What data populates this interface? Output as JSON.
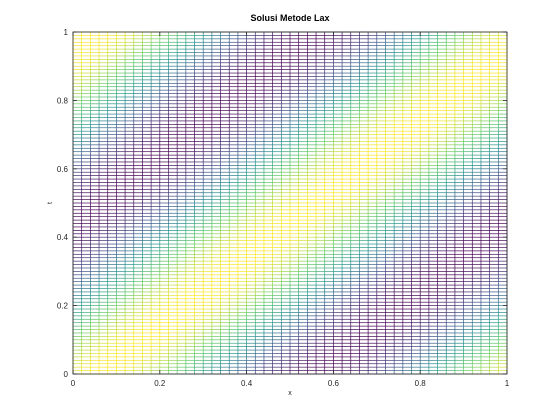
{
  "chart_data": {
    "type": "mesh",
    "title": "Solusi Metode Lax",
    "xlabel": "x",
    "ylabel": "t",
    "xlim": [
      0,
      1
    ],
    "ylim": [
      0,
      1
    ],
    "xticks": [
      0,
      0.2,
      0.4,
      0.6,
      0.8,
      1
    ],
    "xtick_labels": [
      "0",
      "0.2",
      "0.4",
      "0.6",
      "0.8",
      "1"
    ],
    "yticks": [
      0,
      0.2,
      0.4,
      0.6,
      0.8,
      1
    ],
    "ytick_labels": [
      "0",
      "0.2",
      "0.4",
      "0.6",
      "0.8",
      "1"
    ],
    "grid": {
      "nx": 51,
      "nt": 101
    },
    "colormap": [
      "#440154",
      "#3b528b",
      "#21918c",
      "#5ec962",
      "#fde725"
    ],
    "grid_lines": false
  }
}
